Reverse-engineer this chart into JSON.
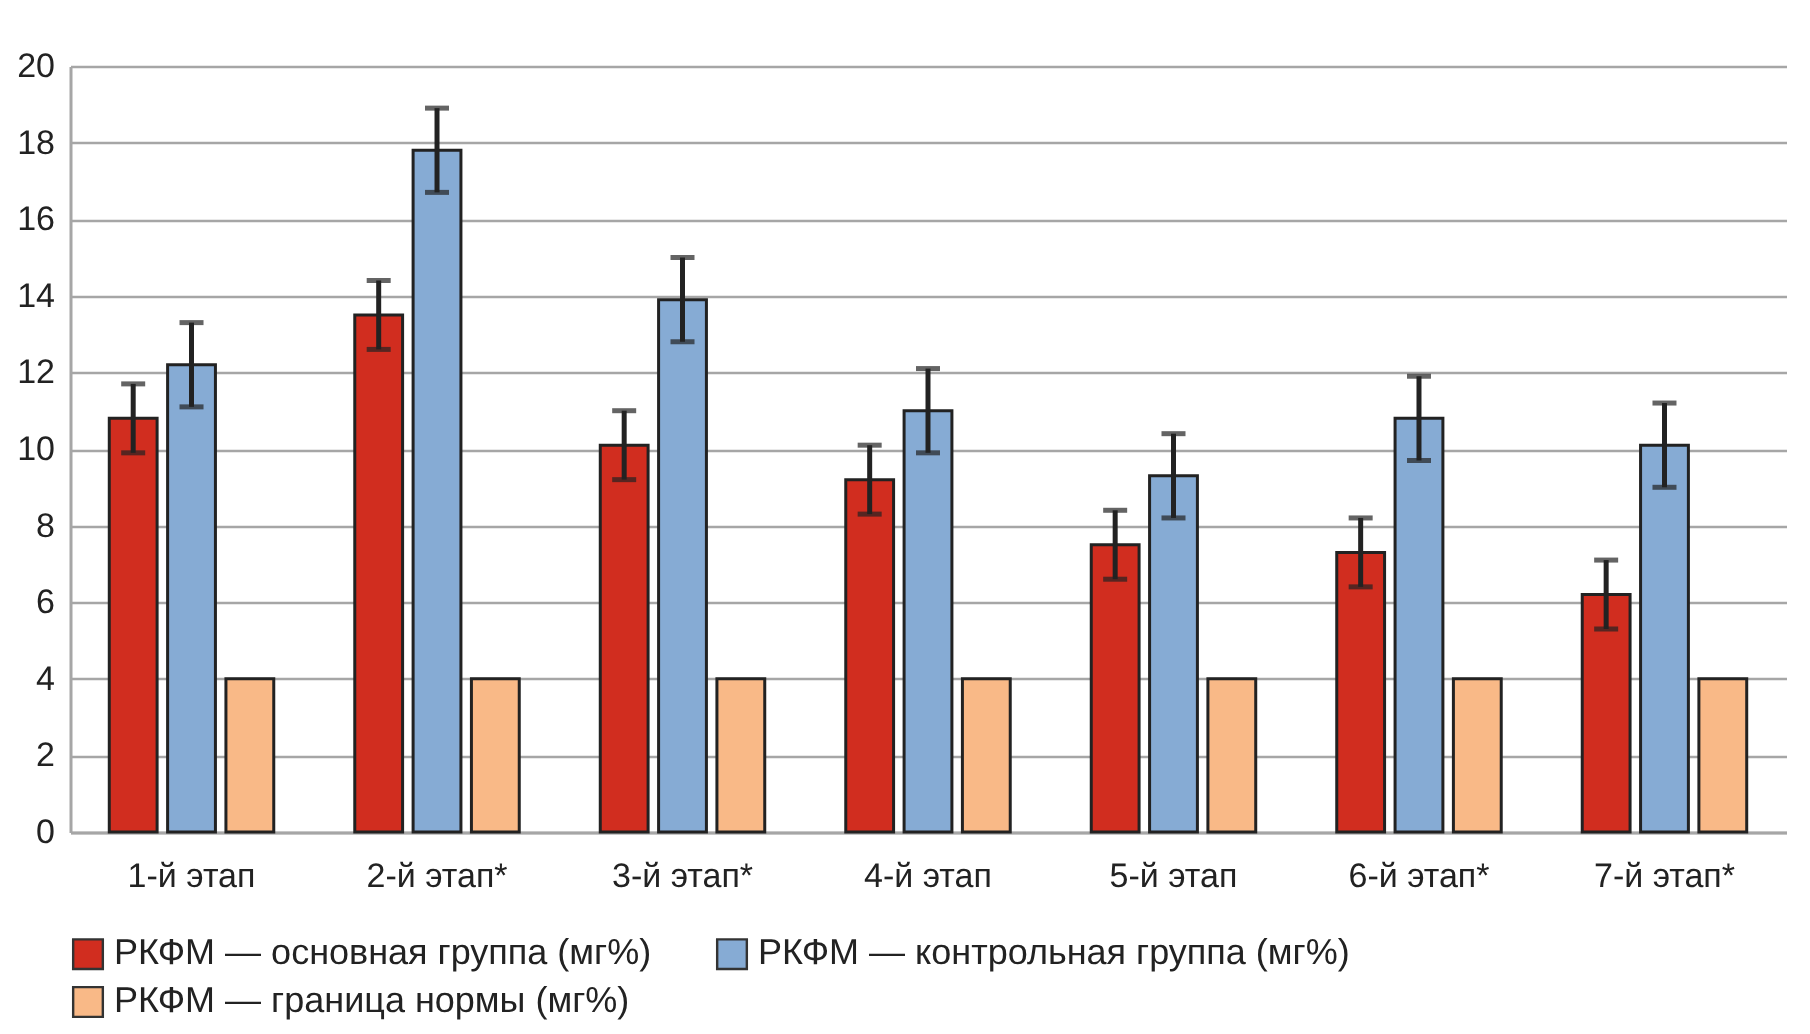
{
  "chart_data": {
    "type": "bar",
    "categories": [
      "1-й этап",
      "2-й этап*",
      "3-й этап*",
      "4-й этап",
      "5-й этап",
      "6-й этап*",
      "7-й этап*"
    ],
    "series": [
      {
        "name": "РКФМ — основная группа (мг%)",
        "color": "#d12d1f",
        "values": [
          10.8,
          13.5,
          10.1,
          9.2,
          7.5,
          7.3,
          6.2
        ],
        "errors": [
          0.9,
          0.9,
          0.9,
          0.9,
          0.9,
          0.9,
          0.9
        ]
      },
      {
        "name": "РКФМ — контрольная группа (мг%)",
        "color": "#86abd4",
        "values": [
          12.2,
          17.8,
          13.9,
          11.0,
          9.3,
          10.8,
          10.1
        ],
        "errors": [
          1.1,
          1.1,
          1.1,
          1.1,
          1.1,
          1.1,
          1.1
        ]
      },
      {
        "name": "РКФМ — граница нормы (мг%)",
        "color": "#f9b987",
        "values": [
          4,
          4,
          4,
          4,
          4,
          4,
          4
        ]
      }
    ],
    "ylim": [
      0,
      20
    ],
    "yticks": [
      0,
      2,
      4,
      6,
      8,
      10,
      12,
      14,
      16,
      18,
      20
    ],
    "grid": "y",
    "legend": "bottom"
  }
}
